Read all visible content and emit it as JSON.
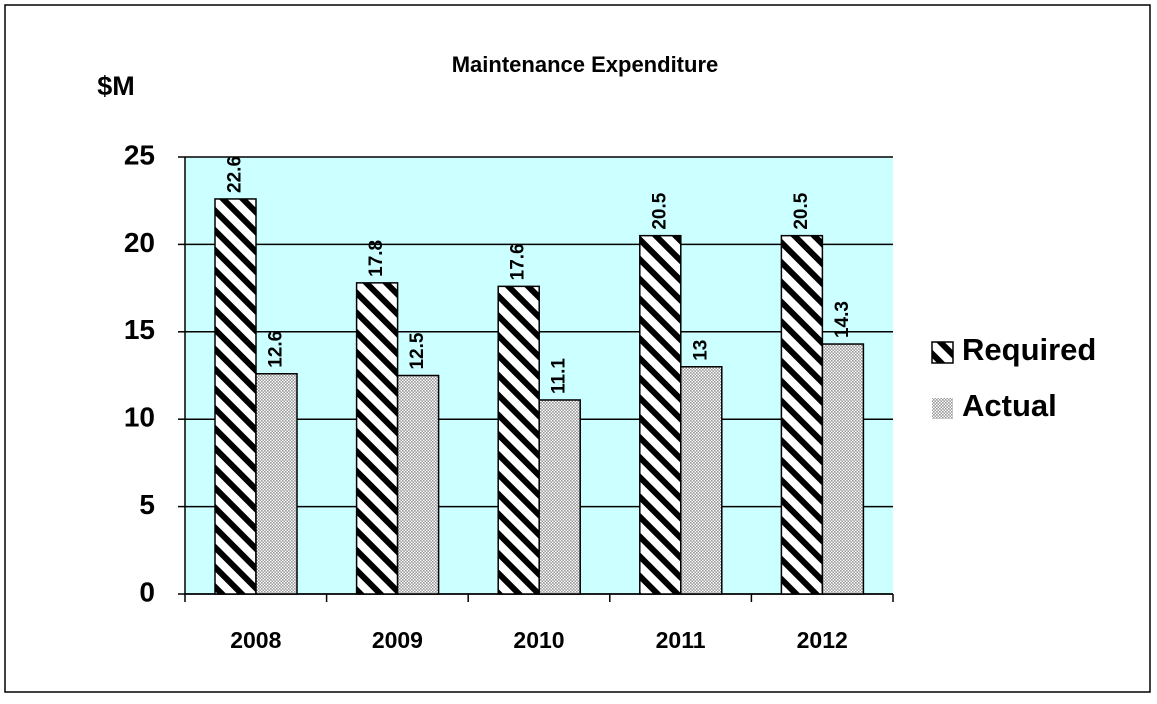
{
  "chart_data": {
    "type": "bar",
    "title": "Maintenance Expenditure",
    "y_label": "$M",
    "categories": [
      "2008",
      "2009",
      "2010",
      "2011",
      "2012"
    ],
    "series": [
      {
        "name": "Required",
        "color": "#000000",
        "values": [
          22.6,
          17.8,
          17.6,
          20.5,
          20.5
        ]
      },
      {
        "name": "Actual",
        "color": "#999999",
        "values": [
          12.6,
          12.5,
          11.1,
          13,
          14.3
        ]
      }
    ],
    "ylim": [
      0,
      25
    ],
    "yticks": [
      0,
      5,
      10,
      15,
      20,
      25
    ],
    "grid": true,
    "plot_background": "#ccffff",
    "legend": "right"
  }
}
